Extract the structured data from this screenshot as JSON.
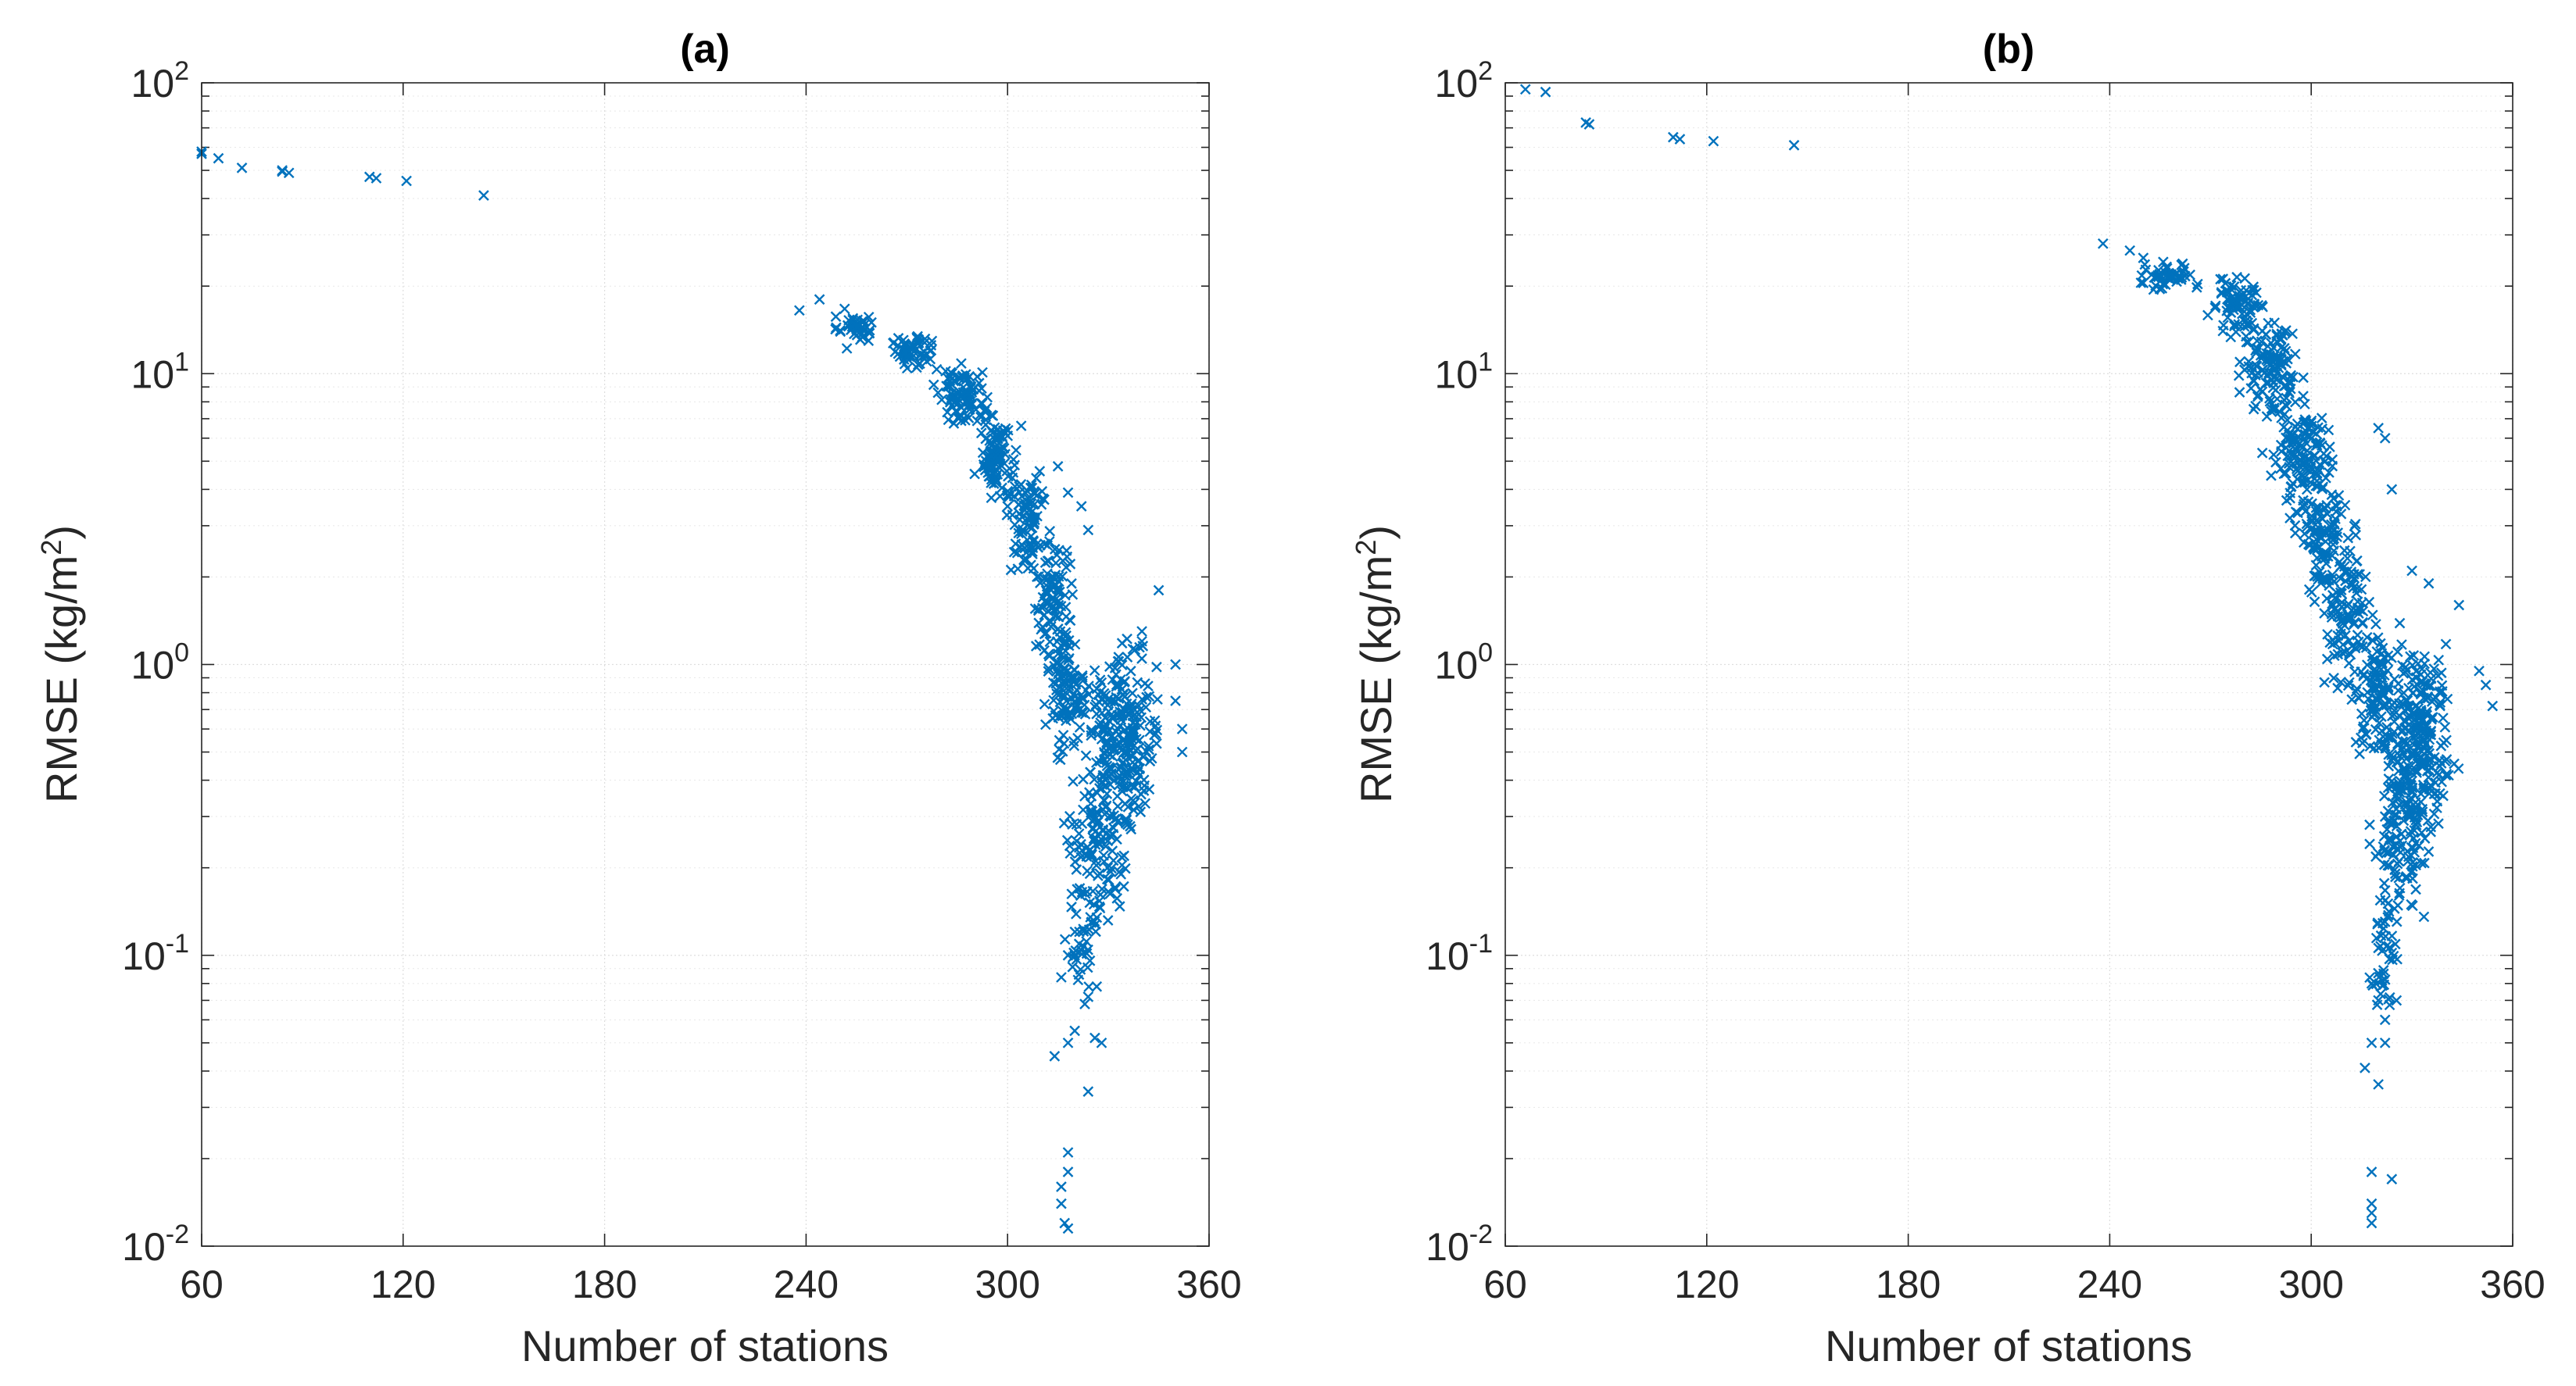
{
  "figure": {
    "marker_color": "#0072BD",
    "marker_symbol": "x"
  },
  "chart_data": [
    {
      "type": "scatter",
      "title": "(a)",
      "xlabel": "Number of stations",
      "ylabel": "RMSE (kg/m2)",
      "ylabel_main": "RMSE (kg/m",
      "ylabel_sup": "2",
      "ylabel_tail": ")",
      "xscale": "linear",
      "yscale": "log",
      "xlim": [
        60,
        360
      ],
      "ylim": [
        0.01,
        100
      ],
      "xticks": [
        60,
        120,
        180,
        240,
        300,
        360
      ],
      "yticks": [
        {
          "value": 0.01,
          "base": "10",
          "exp": "-2"
        },
        {
          "value": 0.1,
          "base": "10",
          "exp": "-1"
        },
        {
          "value": 1,
          "base": "10",
          "exp": "0"
        },
        {
          "value": 10,
          "base": "10",
          "exp": "1"
        },
        {
          "value": 100,
          "base": "10",
          "exp": "2"
        }
      ],
      "grid": true,
      "outliers": [
        [
          60,
          57
        ],
        [
          60,
          58
        ],
        [
          65,
          55
        ],
        [
          72,
          51
        ],
        [
          84,
          49.5
        ],
        [
          86,
          49
        ],
        [
          84,
          50
        ],
        [
          110,
          47.5
        ],
        [
          112,
          47
        ],
        [
          121,
          46
        ],
        [
          144,
          41
        ],
        [
          238,
          16.5
        ],
        [
          244,
          18
        ],
        [
          300,
          3.5
        ],
        [
          315,
          4.8
        ],
        [
          318,
          3.9
        ],
        [
          322,
          3.5
        ],
        [
          324,
          2.9
        ],
        [
          340,
          1.3
        ],
        [
          345,
          1.8
        ],
        [
          350,
          1.0
        ],
        [
          350,
          0.75
        ],
        [
          352,
          0.6
        ],
        [
          352,
          0.5
        ],
        [
          316,
          0.084
        ],
        [
          318,
          0.1
        ],
        [
          320,
          0.1
        ],
        [
          323,
          0.068
        ],
        [
          324,
          0.072
        ],
        [
          326,
          0.052
        ],
        [
          328,
          0.05
        ],
        [
          318,
          0.05
        ],
        [
          320,
          0.055
        ],
        [
          314,
          0.045
        ],
        [
          324,
          0.034
        ],
        [
          318,
          0.021
        ],
        [
          318,
          0.018
        ],
        [
          316,
          0.016
        ],
        [
          316,
          0.014
        ],
        [
          317,
          0.012
        ],
        [
          318,
          0.0115
        ]
      ],
      "clusters": [
        {
          "x": [
            245,
            265
          ],
          "y": [
            12,
            17
          ],
          "n": 40
        },
        {
          "x": [
            262,
            282
          ],
          "y": [
            10,
            14
          ],
          "n": 60
        },
        {
          "x": [
            276,
            296
          ],
          "y": [
            6.5,
            11
          ],
          "n": 90
        },
        {
          "x": [
            288,
            306
          ],
          "y": [
            3.5,
            8
          ],
          "n": 110
        },
        {
          "x": [
            298,
            314
          ],
          "y": [
            2.0,
            5
          ],
          "n": 90
        },
        {
          "x": [
            305,
            322
          ],
          "y": [
            0.9,
            3.0
          ],
          "n": 100
        },
        {
          "x": [
            310,
            326
          ],
          "y": [
            0.45,
            1.4
          ],
          "n": 100
        },
        {
          "x": [
            320,
            348
          ],
          "y": [
            0.25,
            1.3
          ],
          "n": 260
        },
        {
          "x": [
            314,
            340
          ],
          "y": [
            0.12,
            0.5
          ],
          "n": 120
        },
        {
          "x": [
            316,
            330
          ],
          "y": [
            0.07,
            0.2
          ],
          "n": 40
        }
      ]
    },
    {
      "type": "scatter",
      "title": "(b)",
      "xlabel": "Number of stations",
      "ylabel": "RMSE (kg/m2)",
      "ylabel_main": "RMSE (kg/m",
      "ylabel_sup": "2",
      "ylabel_tail": ")",
      "xscale": "linear",
      "yscale": "log",
      "xlim": [
        60,
        360
      ],
      "ylim": [
        0.01,
        100
      ],
      "xticks": [
        60,
        120,
        180,
        240,
        300,
        360
      ],
      "yticks": [
        {
          "value": 0.01,
          "base": "10",
          "exp": "-2"
        },
        {
          "value": 0.1,
          "base": "10",
          "exp": "-1"
        },
        {
          "value": 1,
          "base": "10",
          "exp": "0"
        },
        {
          "value": 10,
          "base": "10",
          "exp": "1"
        },
        {
          "value": 100,
          "base": "10",
          "exp": "2"
        }
      ],
      "grid": true,
      "outliers": [
        [
          66,
          95
        ],
        [
          72,
          93
        ],
        [
          84,
          73
        ],
        [
          85,
          72
        ],
        [
          110,
          65
        ],
        [
          112,
          64
        ],
        [
          122,
          63
        ],
        [
          146,
          61
        ],
        [
          238,
          28
        ],
        [
          246,
          26.5
        ],
        [
          250,
          25
        ],
        [
          320,
          6.5
        ],
        [
          322,
          6.0
        ],
        [
          324,
          4.0
        ],
        [
          330,
          2.1
        ],
        [
          335,
          1.9
        ],
        [
          344,
          1.6
        ],
        [
          350,
          0.95
        ],
        [
          352,
          0.85
        ],
        [
          354,
          0.72
        ],
        [
          318,
          0.08
        ],
        [
          320,
          0.07
        ],
        [
          322,
          0.06
        ],
        [
          318,
          0.05
        ],
        [
          322,
          0.05
        ],
        [
          316,
          0.041
        ],
        [
          320,
          0.036
        ],
        [
          318,
          0.018
        ],
        [
          324,
          0.017
        ],
        [
          318,
          0.014
        ],
        [
          318,
          0.013
        ],
        [
          318,
          0.012
        ]
      ],
      "clusters": [
        {
          "x": [
            246,
            270
          ],
          "y": [
            19,
            25
          ],
          "n": 50
        },
        {
          "x": [
            266,
            290
          ],
          "y": [
            13,
            22
          ],
          "n": 80
        },
        {
          "x": [
            276,
            300
          ],
          "y": [
            7,
            16
          ],
          "n": 120
        },
        {
          "x": [
            284,
            310
          ],
          "y": [
            3.0,
            9
          ],
          "n": 140
        },
        {
          "x": [
            292,
            316
          ],
          "y": [
            1.5,
            5
          ],
          "n": 120
        },
        {
          "x": [
            300,
            320
          ],
          "y": [
            0.8,
            2.5
          ],
          "n": 100
        },
        {
          "x": [
            310,
            330
          ],
          "y": [
            0.45,
            1.4
          ],
          "n": 110
        },
        {
          "x": [
            318,
            346
          ],
          "y": [
            0.25,
            1.2
          ],
          "n": 270
        },
        {
          "x": [
            314,
            338
          ],
          "y": [
            0.12,
            0.45
          ],
          "n": 110
        },
        {
          "x": [
            316,
            328
          ],
          "y": [
            0.06,
            0.16
          ],
          "n": 40
        }
      ]
    }
  ]
}
